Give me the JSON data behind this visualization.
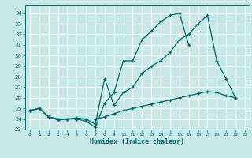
{
  "xlabel": "Humidex (Indice chaleur)",
  "xlim": [
    -0.5,
    23.5
  ],
  "ylim": [
    23,
    34.8
  ],
  "yticks": [
    23,
    24,
    25,
    26,
    27,
    28,
    29,
    30,
    31,
    32,
    33,
    34
  ],
  "xticks": [
    0,
    1,
    2,
    3,
    4,
    5,
    6,
    7,
    8,
    9,
    10,
    11,
    12,
    13,
    14,
    15,
    16,
    17,
    18,
    19,
    20,
    21,
    22,
    23
  ],
  "background_color": "#c8e8e8",
  "grid_color": "#ffffff",
  "line_color": "#006666",
  "lines": [
    {
      "x": [
        0,
        1,
        2,
        3,
        4,
        5,
        6,
        7,
        8,
        9,
        10,
        11,
        12,
        13,
        14,
        15,
        16,
        17
      ],
      "y": [
        24.8,
        25.0,
        24.2,
        23.9,
        24.0,
        24.0,
        23.8,
        23.2,
        25.5,
        26.5,
        29.5,
        29.5,
        31.5,
        32.3,
        33.2,
        33.8,
        34.0,
        31.0
      ]
    },
    {
      "x": [
        0,
        1,
        2,
        3,
        4,
        5,
        6,
        7,
        8,
        9,
        10,
        11,
        12,
        13,
        14,
        15,
        16,
        17,
        18,
        19,
        20,
        21,
        22
      ],
      "y": [
        24.8,
        25.0,
        24.2,
        24.0,
        24.0,
        24.0,
        24.0,
        23.5,
        27.8,
        25.3,
        26.5,
        27.0,
        28.3,
        29.0,
        29.5,
        30.3,
        31.5,
        32.0,
        33.0,
        33.8,
        29.5,
        27.8,
        26.0
      ]
    },
    {
      "x": [
        0,
        1,
        2,
        3,
        4,
        5,
        6,
        7,
        8,
        9,
        10,
        11,
        12,
        13,
        14,
        15,
        16,
        17,
        18,
        19,
        20,
        21,
        22
      ],
      "y": [
        24.8,
        25.0,
        24.2,
        24.0,
        24.0,
        24.1,
        24.0,
        24.0,
        24.2,
        24.5,
        24.8,
        25.0,
        25.2,
        25.4,
        25.6,
        25.8,
        26.0,
        26.2,
        26.4,
        26.6,
        26.5,
        26.2,
        26.0
      ]
    }
  ]
}
